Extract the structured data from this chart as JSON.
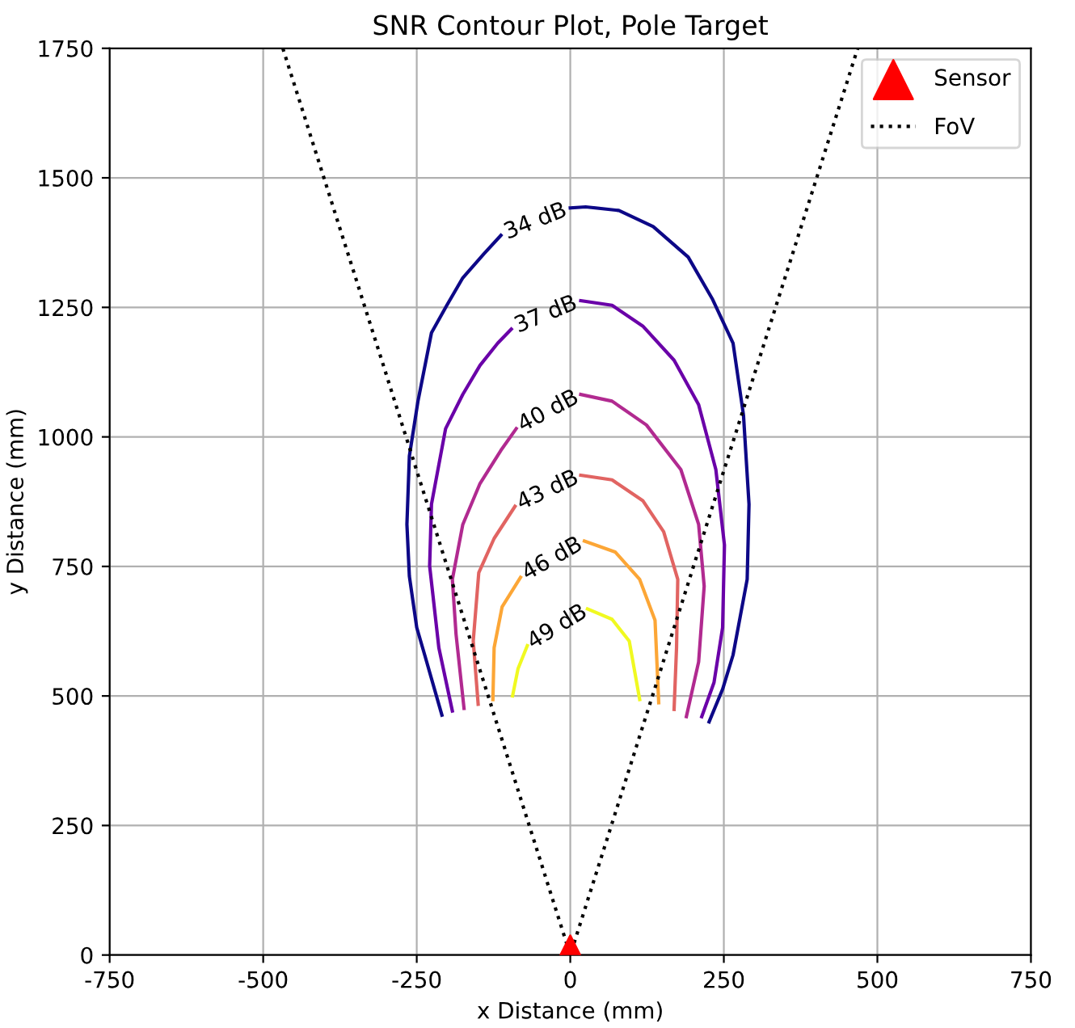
{
  "chart_data": {
    "type": "line",
    "title": "SNR Contour Plot, Pole Target",
    "xlabel": "x Distance (mm)",
    "ylabel": "y Distance (mm)",
    "xlim": [
      -750,
      750
    ],
    "xticks": [
      -750,
      -500,
      -250,
      0,
      250,
      500,
      750
    ],
    "ylim": [
      0,
      1750
    ],
    "yticks": [
      0,
      250,
      500,
      750,
      1000,
      1250,
      1500,
      1750
    ],
    "grid": true,
    "legend": "top right",
    "series": [
      {
        "name": "34 dB",
        "color": "#0d0887",
        "x": [
          -209,
          -237,
          -250,
          -262,
          -266,
          -262,
          -248,
          -226,
          -201,
          -175,
          -141,
          -113,
          -57,
          0,
          25,
          79,
          135,
          192,
          231,
          265,
          282,
          291,
          288,
          265,
          248,
          226
        ],
        "values": [
          463,
          579,
          632,
          731,
          831,
          963,
          1069,
          1201,
          1254,
          1307,
          1353,
          1389,
          null,
          1442,
          1444,
          1437,
          1406,
          1347,
          1267,
          1181,
          1042,
          870,
          725,
          579,
          513,
          450
        ]
      },
      {
        "name": "37 dB",
        "color": "#6a00a8",
        "x": [
          -192,
          -214,
          -229,
          -226,
          -203,
          -175,
          -147,
          -118,
          -96,
          -40,
          17,
          68,
          118,
          169,
          209,
          237,
          251,
          248,
          234,
          214
        ],
        "values": [
          471,
          593,
          751,
          870,
          1016,
          1082,
          1138,
          1181,
          1208,
          null,
          1263,
          1254,
          1214,
          1148,
          1062,
          937,
          791,
          632,
          526,
          460
        ]
      },
      {
        "name": "40 dB",
        "color": "#b12a90",
        "x": [
          -173,
          -186,
          -192,
          -175,
          -147,
          -113,
          -88,
          -35,
          17,
          68,
          124,
          180,
          209,
          218,
          209,
          189
        ],
        "values": [
          476,
          619,
          725,
          831,
          910,
          974,
          1016,
          null,
          1082,
          1069,
          1023,
          937,
          831,
          712,
          566,
          460
        ]
      },
      {
        "name": "43 dB",
        "color": "#e16462",
        "x": [
          -150,
          -158,
          -149,
          -124,
          -90,
          -36,
          17,
          68,
          118,
          152,
          175,
          173,
          169
        ],
        "values": [
          484,
          606,
          738,
          804,
          866,
          null,
          926,
          917,
          877,
          817,
          725,
          593,
          474
        ]
      },
      {
        "name": "46 dB",
        "color": "#fca636",
        "x": [
          -126,
          -124,
          -111,
          -81,
          -29,
          23,
          73,
          113,
          138,
          144
        ],
        "values": [
          493,
          593,
          672,
          729,
          null,
          799,
          778,
          725,
          646,
          487
        ]
      },
      {
        "name": "49 dB",
        "color": "#f0f921",
        "x": [
          -94,
          -85,
          -70,
          -21,
          28,
          68,
          96,
          113
        ],
        "values": [
          500,
          553,
          597,
          null,
          668,
          648,
          606,
          493
        ]
      },
      {
        "name": "Sensor",
        "type": "scatter",
        "marker": "triangle",
        "color": "#ff0000",
        "x": [
          0
        ],
        "values": [
          0
        ]
      },
      {
        "name": "FoV",
        "line_style": "dotted",
        "color": "#000000",
        "x": [
          -468,
          0,
          468
        ],
        "values": [
          1750,
          0,
          1750
        ]
      }
    ]
  }
}
